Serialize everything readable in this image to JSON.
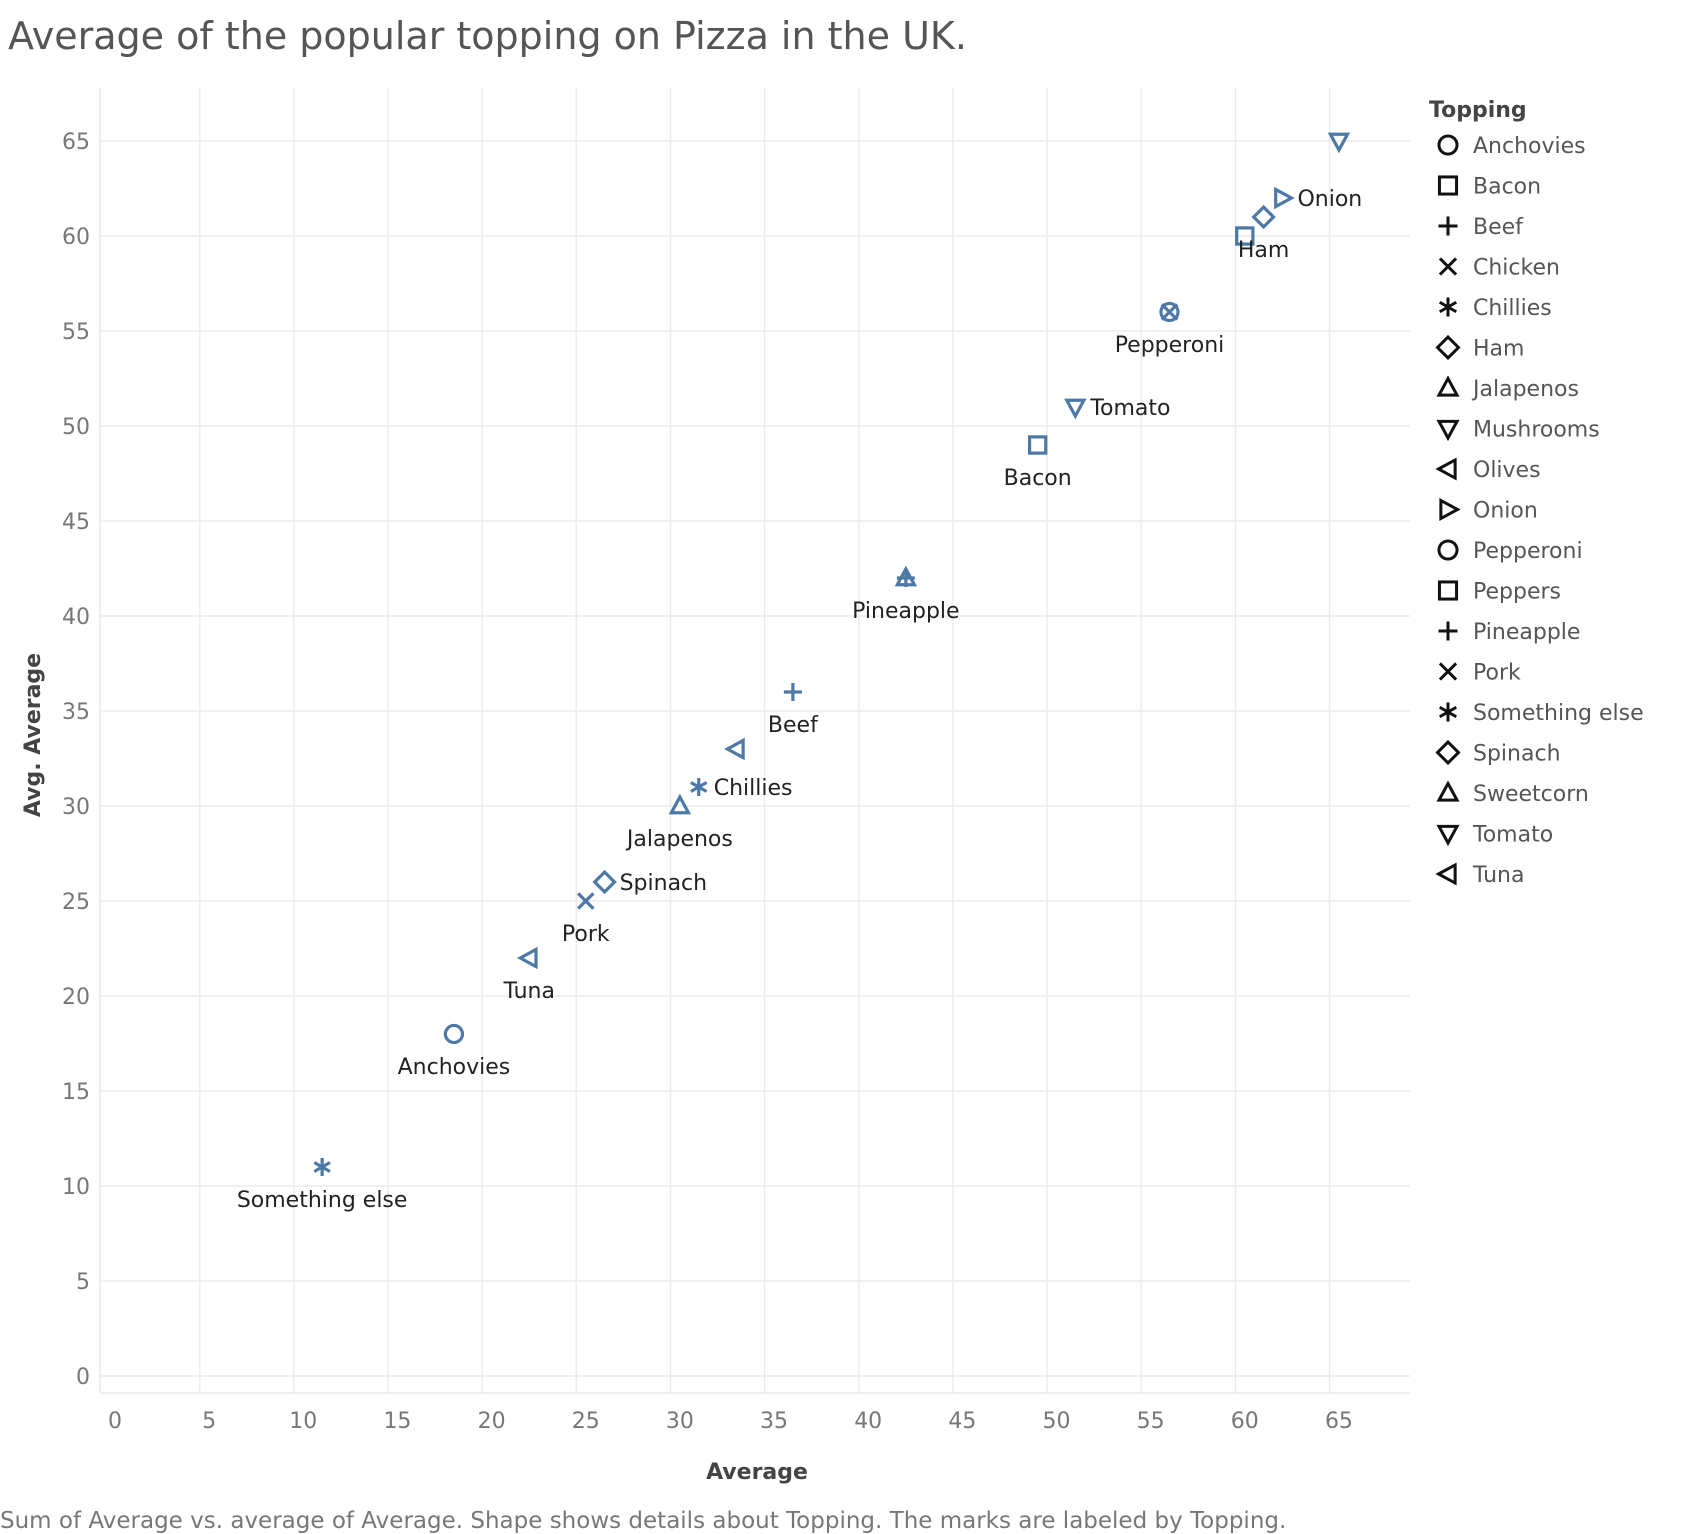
{
  "chart_data": {
    "type": "scatter",
    "title": "Average of the popular topping on Pizza in the UK.",
    "xlabel": "Average",
    "ylabel": "Avg. Average",
    "xlim": [
      0,
      68
    ],
    "ylim": [
      0,
      68
    ],
    "x_ticks": [
      0,
      5,
      10,
      15,
      20,
      25,
      30,
      35,
      40,
      45,
      50,
      55,
      60,
      65
    ],
    "y_ticks": [
      0,
      5,
      10,
      15,
      20,
      25,
      30,
      35,
      40,
      45,
      50,
      55,
      60,
      65
    ],
    "grid": true,
    "legend": {
      "title": "Topping",
      "position": "right",
      "entries": [
        {
          "label": "Anchovies",
          "shape": "circle"
        },
        {
          "label": "Bacon",
          "shape": "square"
        },
        {
          "label": "Beef",
          "shape": "plus"
        },
        {
          "label": "Chicken",
          "shape": "cross"
        },
        {
          "label": "Chillies",
          "shape": "asterisk"
        },
        {
          "label": "Ham",
          "shape": "diamond"
        },
        {
          "label": "Jalapenos",
          "shape": "triangle-up"
        },
        {
          "label": "Mushrooms",
          "shape": "triangle-down"
        },
        {
          "label": "Olives",
          "shape": "triangle-left"
        },
        {
          "label": "Onion",
          "shape": "triangle-right"
        },
        {
          "label": "Pepperoni",
          "shape": "circle"
        },
        {
          "label": "Peppers",
          "shape": "square"
        },
        {
          "label": "Pineapple",
          "shape": "plus"
        },
        {
          "label": "Pork",
          "shape": "cross"
        },
        {
          "label": "Something else",
          "shape": "asterisk"
        },
        {
          "label": "Spinach",
          "shape": "diamond"
        },
        {
          "label": "Sweetcorn",
          "shape": "triangle-up"
        },
        {
          "label": "Tomato",
          "shape": "triangle-down"
        },
        {
          "label": "Tuna",
          "shape": "triangle-left"
        }
      ]
    },
    "mark_color": "#4e79a7",
    "points": [
      {
        "topping": "Something else",
        "x": 11,
        "y": 11,
        "shape": "asterisk",
        "label": "Something else",
        "label_pos": "below"
      },
      {
        "topping": "Anchovies",
        "x": 18,
        "y": 18,
        "shape": "circle",
        "label": "Anchovies",
        "label_pos": "below"
      },
      {
        "topping": "Tuna",
        "x": 22,
        "y": 22,
        "shape": "triangle-left",
        "label": "Tuna",
        "label_pos": "below"
      },
      {
        "topping": "Pork",
        "x": 25,
        "y": 25,
        "shape": "cross",
        "label": "Pork",
        "label_pos": "below"
      },
      {
        "topping": "Spinach",
        "x": 26,
        "y": 26,
        "shape": "diamond",
        "label": "Spinach",
        "label_pos": "right"
      },
      {
        "topping": "Jalapenos",
        "x": 30,
        "y": 30,
        "shape": "triangle-up",
        "label": "Jalapenos",
        "label_pos": "below"
      },
      {
        "topping": "Chillies",
        "x": 31,
        "y": 31,
        "shape": "asterisk",
        "label": "Chillies",
        "label_pos": "right"
      },
      {
        "topping": "Olives",
        "x": 33,
        "y": 33,
        "shape": "triangle-left",
        "label": "",
        "label_pos": "none"
      },
      {
        "topping": "Beef",
        "x": 36,
        "y": 36,
        "shape": "plus",
        "label": "Beef",
        "label_pos": "below"
      },
      {
        "topping": "Pineapple",
        "x": 42,
        "y": 42,
        "shape": "plus",
        "label": "Pineapple",
        "label_pos": "below"
      },
      {
        "topping": "Sweetcorn",
        "x": 42,
        "y": 42,
        "shape": "triangle-up",
        "label": "",
        "label_pos": "none"
      },
      {
        "topping": "Bacon",
        "x": 49,
        "y": 49,
        "shape": "square",
        "label": "Bacon",
        "label_pos": "below"
      },
      {
        "topping": "Tomato",
        "x": 51,
        "y": 51,
        "shape": "triangle-down",
        "label": "Tomato",
        "label_pos": "right"
      },
      {
        "topping": "Pepperoni",
        "x": 56,
        "y": 56,
        "shape": "circle",
        "label": "Pepperoni",
        "label_pos": "below"
      },
      {
        "topping": "Chicken",
        "x": 56,
        "y": 56,
        "shape": "cross",
        "label": "",
        "label_pos": "none"
      },
      {
        "topping": "Peppers",
        "x": 60,
        "y": 60,
        "shape": "square",
        "label": "",
        "label_pos": "none"
      },
      {
        "topping": "Ham",
        "x": 61,
        "y": 61,
        "shape": "diamond",
        "label": "Ham",
        "label_pos": "below"
      },
      {
        "topping": "Onion",
        "x": 62,
        "y": 62,
        "shape": "triangle-right",
        "label": "Onion",
        "label_pos": "right"
      },
      {
        "topping": "Mushrooms",
        "x": 65,
        "y": 65,
        "shape": "triangle-down",
        "label": "",
        "label_pos": "none"
      }
    ]
  },
  "caption": "Sum of Average vs. average of Average.  Shape shows details about Topping.  The marks are labeled by Topping."
}
